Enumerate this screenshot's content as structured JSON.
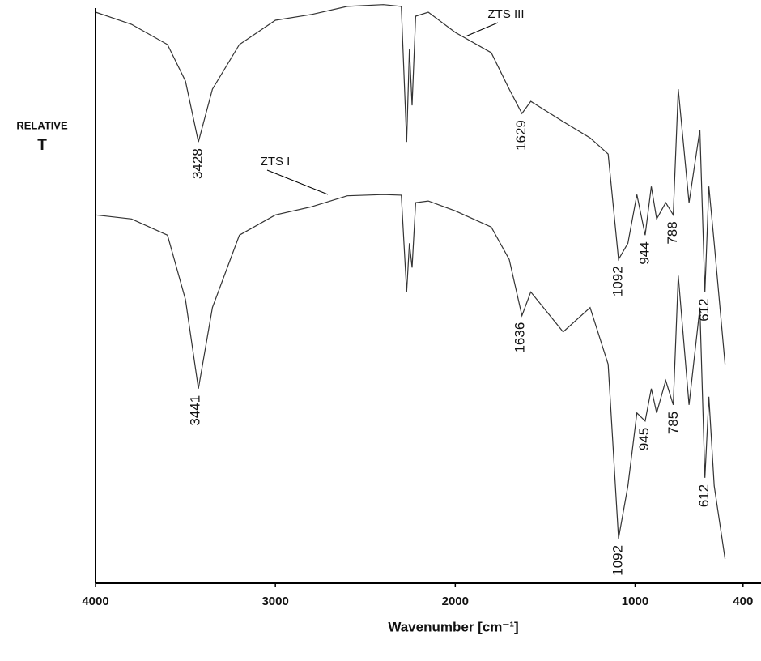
{
  "chart_data": {
    "type": "line",
    "xlabel": "Wavenumber [cm⁻¹]",
    "ylabel": [
      "RELATIVE",
      "T"
    ],
    "x": [
      4000,
      3800,
      3600,
      3500,
      3428,
      3350,
      3200,
      3000,
      2800,
      2600,
      2400,
      2300,
      2270,
      2255,
      2240,
      2220,
      2150,
      2000,
      1800,
      1700,
      1629,
      1580,
      1400,
      1250,
      1150,
      1092,
      1040,
      990,
      944,
      910,
      880,
      830,
      788,
      760,
      700,
      640,
      612,
      590,
      560,
      500
    ],
    "series": [
      {
        "name": "ZTS III",
        "color": "#333333",
        "values": [
          98.6,
          96.5,
          93.0,
          86.7,
          76.2,
          85.3,
          93.0,
          97.2,
          98.2,
          99.6,
          99.9,
          99.6,
          76.2,
          92.3,
          82.5,
          97.9,
          98.6,
          95.1,
          91.6,
          85.3,
          81.1,
          83.2,
          79.7,
          76.9,
          74.1,
          55.9,
          58.7,
          67.1,
          60.1,
          68.5,
          62.9,
          65.7,
          63.6,
          85.3,
          65.7,
          78.3,
          50.3,
          68.5,
          58.7,
          37.8
        ]
      },
      {
        "name": "ZTS I",
        "color": "#333333",
        "values": [
          63.6,
          62.9,
          60.1,
          49.0,
          33.6,
          47.6,
          60.1,
          63.6,
          65.0,
          66.9,
          67.1,
          67.0,
          50.3,
          58.7,
          54.5,
          65.7,
          66.0,
          64.3,
          61.5,
          55.9,
          46.2,
          50.3,
          43.4,
          47.6,
          37.8,
          7.7,
          16.8,
          29.4,
          28.0,
          33.6,
          29.4,
          35.0,
          30.8,
          53.1,
          30.8,
          47.6,
          18.2,
          32.2,
          16.8,
          4.2
        ]
      }
    ],
    "peaks": [
      {
        "series": 0,
        "x": 3428
      },
      {
        "series": 0,
        "x": 1629
      },
      {
        "series": 0,
        "x": 1092
      },
      {
        "series": 0,
        "x": 944
      },
      {
        "series": 0,
        "x": 788
      },
      {
        "series": 0,
        "x": 612
      },
      {
        "series": 1,
        "x": 3441
      },
      {
        "series": 1,
        "x": 1636
      },
      {
        "series": 1,
        "x": 1092
      },
      {
        "series": 1,
        "x": 945
      },
      {
        "series": 1,
        "x": 785
      },
      {
        "series": 1,
        "x": 612
      }
    ],
    "xlim": [
      4000,
      300
    ],
    "ylim": [
      0,
      100
    ],
    "xticks": [
      4000,
      3000,
      2000,
      1000,
      400
    ],
    "grid": false
  }
}
